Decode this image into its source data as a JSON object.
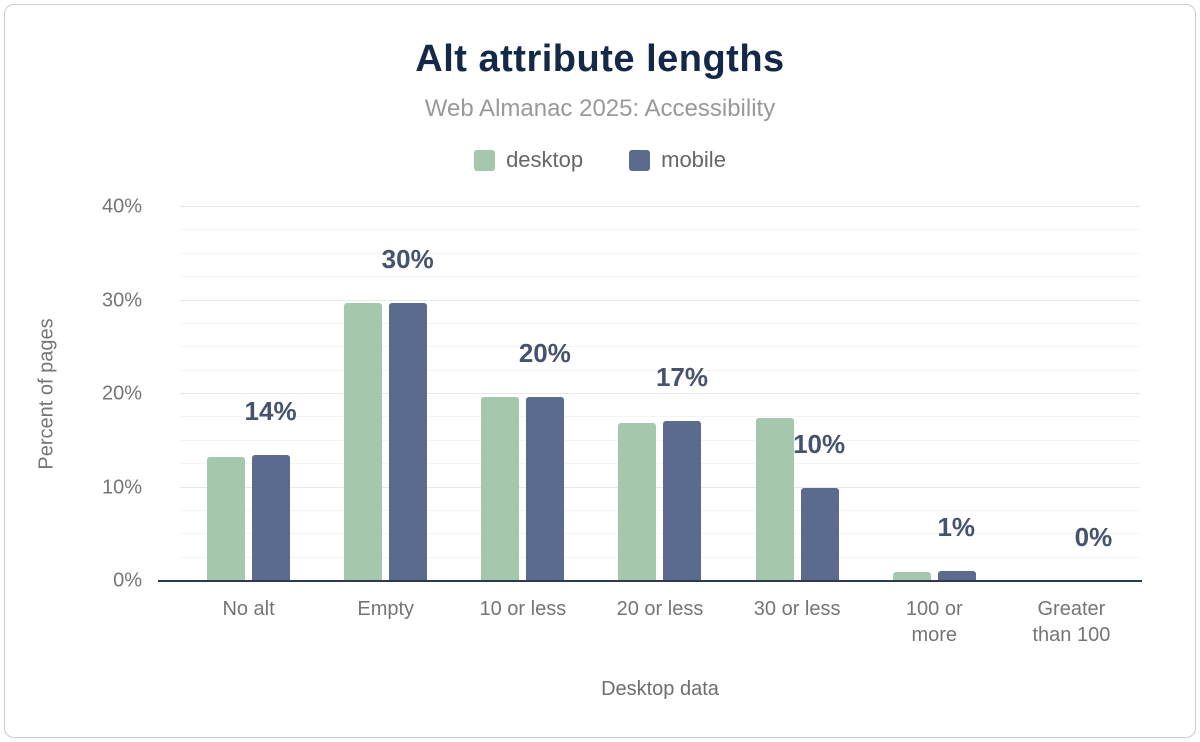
{
  "header": {
    "title": "Alt attribute lengths",
    "subtitle": "Web Almanac 2025: Accessibility"
  },
  "colors": {
    "title": "#142848",
    "subtitle": "#999999",
    "axis_text": "#757575",
    "axis_line": "#2c3a52",
    "value_label": "#46536f",
    "desktop": "#a5c7ac",
    "mobile": "#5a6b8d"
  },
  "chart_data": {
    "type": "bar",
    "title": "Alt attribute lengths",
    "subtitle": "Web Almanac 2025: Accessibility",
    "categories": [
      "No alt",
      "Empty",
      "10 or less",
      "20 or less",
      "30 or less",
      "100 or\nmore",
      "Greater\nthan 100"
    ],
    "series": [
      {
        "name": "desktop",
        "color": "#a5c7ac",
        "values": [
          13.3,
          29.7,
          19.7,
          16.9,
          17.4,
          1.0,
          0
        ]
      },
      {
        "name": "mobile",
        "color": "#5a6b8d",
        "values": [
          13.5,
          29.7,
          19.7,
          17.1,
          10.0,
          1.1,
          0
        ]
      }
    ],
    "value_labels": [
      "14%",
      "30%",
      "20%",
      "17%",
      "10%",
      "1%",
      "0%"
    ],
    "xlabel": "Desktop data",
    "ylabel": "Percent of pages",
    "ylim": [
      0,
      40
    ],
    "yticks": [
      {
        "label": "0%",
        "value": 0
      },
      {
        "label": "10%",
        "value": 10
      },
      {
        "label": "20%",
        "value": 20
      },
      {
        "label": "30%",
        "value": 30
      },
      {
        "label": "40%",
        "value": 40
      }
    ],
    "grid": "horizontal",
    "legend_position": "top",
    "legend_entries": [
      "desktop",
      "mobile"
    ]
  }
}
